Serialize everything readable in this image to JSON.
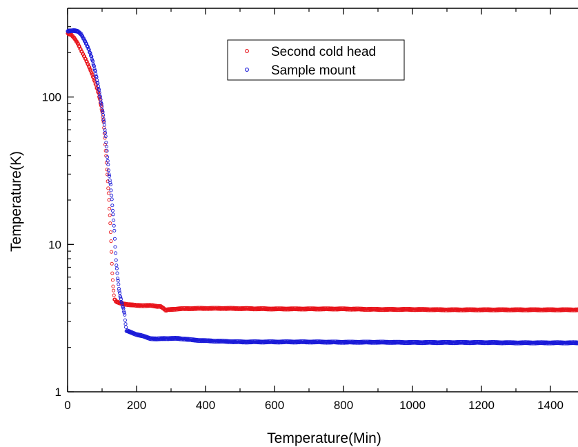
{
  "chart_data": {
    "type": "scatter",
    "title": "",
    "xlabel": "Temperature(Min)",
    "ylabel": "Temperature(K)",
    "xlim": [
      0,
      1480
    ],
    "ylim": [
      1,
      400
    ],
    "yscale": "log",
    "xticks": [
      "0",
      "200",
      "400",
      "600",
      "800",
      "1000",
      "1200",
      "1400"
    ],
    "yticks": [
      "1",
      "10",
      "100"
    ],
    "grid": false,
    "legend": "top-center",
    "series": [
      {
        "name": "Second cold head",
        "color": "#e8141b",
        "marker": "circle-open",
        "points": [
          [
            0,
            270
          ],
          [
            10,
            265
          ],
          [
            20,
            250
          ],
          [
            30,
            230
          ],
          [
            40,
            205
          ],
          [
            50,
            185
          ],
          [
            60,
            165
          ],
          [
            70,
            145
          ],
          [
            80,
            125
          ],
          [
            90,
            105
          ],
          [
            100,
            80
          ],
          [
            105,
            65
          ],
          [
            110,
            45
          ],
          [
            115,
            30
          ],
          [
            120,
            20
          ],
          [
            125,
            12
          ],
          [
            130,
            6
          ],
          [
            135,
            4.3
          ],
          [
            140,
            4.1
          ],
          [
            150,
            4.0
          ],
          [
            160,
            3.95
          ],
          [
            180,
            3.9
          ],
          [
            200,
            3.85
          ],
          [
            220,
            3.85
          ],
          [
            240,
            3.85
          ],
          [
            260,
            3.8
          ],
          [
            270,
            3.8
          ],
          [
            280,
            3.65
          ],
          [
            285,
            3.55
          ],
          [
            290,
            3.6
          ],
          [
            300,
            3.62
          ],
          [
            320,
            3.65
          ],
          [
            350,
            3.67
          ],
          [
            400,
            3.68
          ],
          [
            450,
            3.68
          ],
          [
            500,
            3.67
          ],
          [
            600,
            3.65
          ],
          [
            700,
            3.65
          ],
          [
            800,
            3.65
          ],
          [
            900,
            3.62
          ],
          [
            1000,
            3.62
          ],
          [
            1100,
            3.6
          ],
          [
            1200,
            3.6
          ],
          [
            1300,
            3.6
          ],
          [
            1400,
            3.6
          ],
          [
            1480,
            3.6
          ]
        ]
      },
      {
        "name": "Sample mount",
        "color": "#1b1bd8",
        "marker": "circle-open",
        "points": [
          [
            0,
            280
          ],
          [
            10,
            282
          ],
          [
            20,
            282
          ],
          [
            30,
            278
          ],
          [
            40,
            265
          ],
          [
            50,
            240
          ],
          [
            60,
            215
          ],
          [
            70,
            185
          ],
          [
            80,
            150
          ],
          [
            90,
            115
          ],
          [
            100,
            85
          ],
          [
            105,
            70
          ],
          [
            110,
            55
          ],
          [
            115,
            40
          ],
          [
            120,
            30
          ],
          [
            125,
            25
          ],
          [
            130,
            18
          ],
          [
            135,
            13
          ],
          [
            140,
            8
          ],
          [
            145,
            6
          ],
          [
            150,
            4.8
          ],
          [
            155,
            4.2
          ],
          [
            160,
            3.8
          ],
          [
            165,
            3.4
          ],
          [
            170,
            2.6
          ],
          [
            180,
            2.55
          ],
          [
            190,
            2.5
          ],
          [
            200,
            2.45
          ],
          [
            220,
            2.38
          ],
          [
            240,
            2.3
          ],
          [
            260,
            2.28
          ],
          [
            280,
            2.3
          ],
          [
            300,
            2.3
          ],
          [
            320,
            2.3
          ],
          [
            340,
            2.28
          ],
          [
            360,
            2.25
          ],
          [
            400,
            2.22
          ],
          [
            450,
            2.2
          ],
          [
            500,
            2.18
          ],
          [
            600,
            2.18
          ],
          [
            700,
            2.18
          ],
          [
            800,
            2.17
          ],
          [
            900,
            2.17
          ],
          [
            1000,
            2.16
          ],
          [
            1100,
            2.16
          ],
          [
            1200,
            2.16
          ],
          [
            1300,
            2.15
          ],
          [
            1400,
            2.15
          ],
          [
            1480,
            2.15
          ]
        ]
      }
    ]
  }
}
